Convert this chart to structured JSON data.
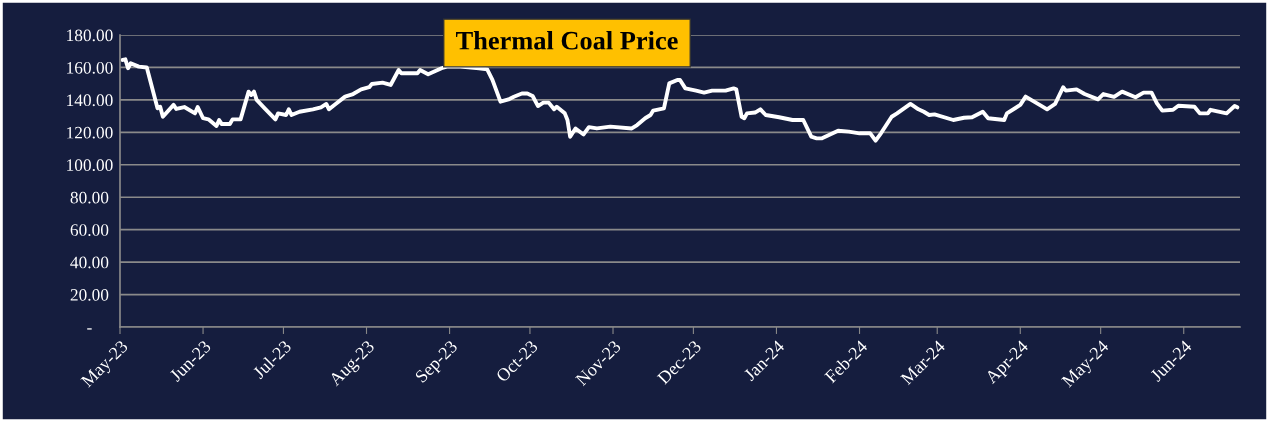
{
  "chart_data": {
    "type": "line",
    "title": "Thermal Coal Price",
    "x": [
      "2023-05-02",
      "2023-05-03",
      "2023-05-04",
      "2023-05-05",
      "2023-05-08",
      "2023-05-11",
      "2023-05-15",
      "2023-05-16",
      "2023-05-17",
      "2023-05-21",
      "2023-05-22",
      "2023-05-25",
      "2023-05-29",
      "2023-05-30",
      "2023-06-01",
      "2023-06-03",
      "2023-06-06",
      "2023-06-07",
      "2023-06-08",
      "2023-06-11",
      "2023-06-12",
      "2023-06-15",
      "2023-06-18",
      "2023-06-19",
      "2023-06-20",
      "2023-06-21",
      "2023-06-24",
      "2023-06-28",
      "2023-06-29",
      "2023-07-02",
      "2023-07-03",
      "2023-07-04",
      "2023-07-07",
      "2023-07-12",
      "2023-07-15",
      "2023-07-17",
      "2023-07-18",
      "2023-07-20",
      "2023-07-24",
      "2023-07-27",
      "2023-07-30",
      "2023-08-02",
      "2023-08-03",
      "2023-08-07",
      "2023-08-08",
      "2023-08-10",
      "2023-08-13",
      "2023-08-14",
      "2023-08-20",
      "2023-08-21",
      "2023-08-24",
      "2023-08-29",
      "2023-08-31",
      "2023-09-05",
      "2023-09-12",
      "2023-09-15",
      "2023-09-17",
      "2023-09-20",
      "2023-09-23",
      "2023-09-25",
      "2023-09-28",
      "2023-09-30",
      "2023-10-02",
      "2023-10-04",
      "2023-10-06",
      "2023-10-08",
      "2023-10-10",
      "2023-10-11",
      "2023-10-14",
      "2023-10-15",
      "2023-10-16",
      "2023-10-18",
      "2023-10-21",
      "2023-10-23",
      "2023-10-26",
      "2023-10-31",
      "2023-11-08",
      "2023-11-10",
      "2023-11-13",
      "2023-11-15",
      "2023-11-16",
      "2023-11-20",
      "2023-11-22",
      "2023-11-25",
      "2023-11-26",
      "2023-11-28",
      "2023-12-02",
      "2023-12-05",
      "2023-12-08",
      "2023-12-13",
      "2023-12-16",
      "2023-12-17",
      "2023-12-19",
      "2023-12-20",
      "2023-12-21",
      "2023-12-24",
      "2023-12-26",
      "2023-12-28",
      "2024-01-02",
      "2024-01-07",
      "2024-01-11",
      "2024-01-14",
      "2024-01-16",
      "2024-01-18",
      "2024-01-22",
      "2024-01-24",
      "2024-01-28",
      "2024-02-01",
      "2024-02-05",
      "2024-02-07",
      "2024-02-09",
      "2024-02-13",
      "2024-02-15",
      "2024-02-20",
      "2024-02-23",
      "2024-02-25",
      "2024-02-27",
      "2024-02-29",
      "2024-03-07",
      "2024-03-11",
      "2024-03-14",
      "2024-03-18",
      "2024-03-20",
      "2024-03-26",
      "2024-03-27",
      "2024-04-01",
      "2024-04-03",
      "2024-04-09",
      "2024-04-11",
      "2024-04-14",
      "2024-04-17",
      "2024-04-18",
      "2024-04-22",
      "2024-04-25",
      "2024-04-30",
      "2024-05-02",
      "2024-05-06",
      "2024-05-09",
      "2024-05-14",
      "2024-05-17",
      "2024-05-20",
      "2024-05-22",
      "2024-05-24",
      "2024-05-28",
      "2024-05-30",
      "2024-06-05",
      "2024-06-07",
      "2024-06-10",
      "2024-06-11",
      "2024-06-17",
      "2024-06-20",
      "2024-06-21"
    ],
    "series": [
      {
        "color": "#ffffff",
        "values": [
          164.6,
          165,
          159.5,
          162.6,
          160.5,
          160,
          134.8,
          135.8,
          129.6,
          136.9,
          134.4,
          135.6,
          131.7,
          135.6,
          128.7,
          128,
          123.9,
          127.6,
          125.1,
          125.1,
          128,
          128,
          145.1,
          143,
          145.1,
          140,
          134.8,
          128,
          131.7,
          130.7,
          134.2,
          130.7,
          132.7,
          134.2,
          135.4,
          137.5,
          134.2,
          136.9,
          142,
          143.6,
          146.5,
          147.8,
          149.8,
          150.6,
          150.2,
          149.2,
          158.4,
          156.4,
          156.4,
          158.4,
          155.8,
          159.5,
          160.5,
          160.5,
          159.5,
          158.9,
          152.3,
          138.9,
          140.3,
          141.9,
          143.9,
          143.9,
          142.4,
          136.2,
          138.3,
          138.3,
          134.2,
          135.8,
          131.7,
          127.6,
          117.3,
          122.4,
          118.7,
          123.2,
          122.4,
          123.5,
          122.4,
          124.5,
          128.7,
          130.7,
          133.4,
          134.8,
          150.2,
          152.3,
          152.3,
          147.1,
          145.7,
          144.5,
          145.7,
          145.7,
          147.1,
          146.5,
          129.6,
          128.7,
          131.7,
          132.2,
          134.2,
          130.7,
          129.3,
          127.6,
          127.6,
          117.3,
          116.3,
          116.3,
          119.4,
          121,
          120.4,
          119.4,
          119.4,
          114.9,
          119.4,
          129.6,
          131.7,
          137.5,
          134.2,
          132.7,
          130.7,
          131.1,
          127.6,
          129,
          129.3,
          132.7,
          128.7,
          127.6,
          131.7,
          136.9,
          142,
          136.2,
          134.2,
          137.5,
          147.8,
          145.7,
          146.5,
          143.6,
          140.3,
          143.6,
          141.9,
          145.1,
          141.6,
          144.5,
          144.5,
          137.9,
          133.4,
          133.9,
          136.4,
          135.8,
          131.7,
          131.7,
          133.9,
          131.7,
          136.2,
          135.4
        ]
      }
    ],
    "xlim": [
      "2023-05-01",
      "2024-06-22"
    ],
    "xticks": [
      {
        "value": "2023-05-01",
        "label": "May-23"
      },
      {
        "value": "2023-06-01",
        "label": "Jun-23"
      },
      {
        "value": "2023-07-01",
        "label": "Jul-23"
      },
      {
        "value": "2023-08-01",
        "label": "Aug-23"
      },
      {
        "value": "2023-09-01",
        "label": "Sep-23"
      },
      {
        "value": "2023-10-01",
        "label": "Oct-23"
      },
      {
        "value": "2023-11-01",
        "label": "Nov-23"
      },
      {
        "value": "2023-12-01",
        "label": "Dec-23"
      },
      {
        "value": "2024-01-01",
        "label": "Jan-24"
      },
      {
        "value": "2024-02-01",
        "label": "Feb-24"
      },
      {
        "value": "2024-03-01",
        "label": "Mar-24"
      },
      {
        "value": "2024-04-01",
        "label": "Apr-24"
      },
      {
        "value": "2024-05-01",
        "label": "May-24"
      },
      {
        "value": "2024-06-01",
        "label": "Jun-24"
      }
    ],
    "ylim": [
      0,
      180
    ],
    "yticks": [
      {
        "value": 0,
        "label": "-"
      },
      {
        "value": 20,
        "label": "20.00"
      },
      {
        "value": 40,
        "label": "40.00"
      },
      {
        "value": 60,
        "label": "60.00"
      },
      {
        "value": 80,
        "label": "80.00"
      },
      {
        "value": 100,
        "label": "100.00"
      },
      {
        "value": 120,
        "label": "120.00"
      },
      {
        "value": 140,
        "label": "140.00"
      },
      {
        "value": 160,
        "label": "160.00"
      },
      {
        "value": 180,
        "label": "180.00"
      }
    ],
    "grid": "y",
    "legend": false,
    "marker": "none",
    "line_style": "solid"
  }
}
